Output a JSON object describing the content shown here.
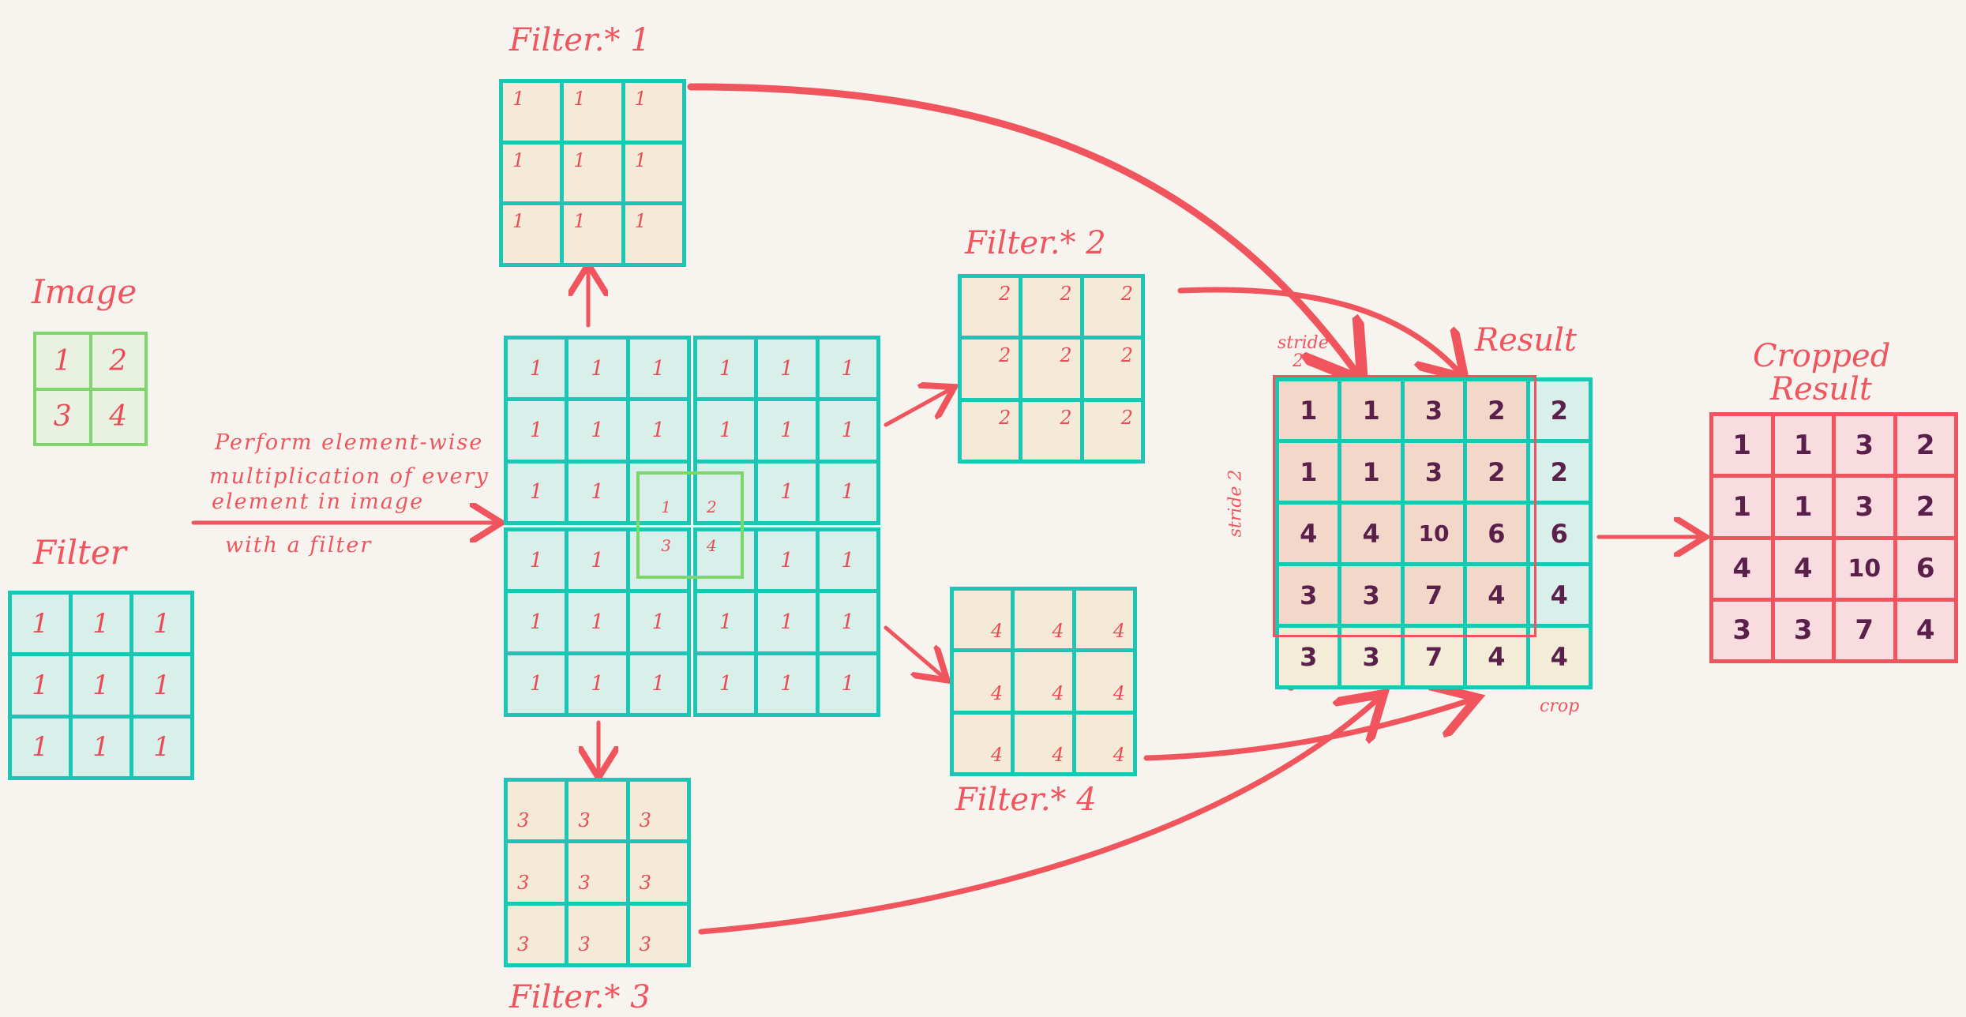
{
  "titles": {
    "image": "Image",
    "filter": "Filter",
    "filter1": "Filter.* 1",
    "filter2": "Filter.* 2",
    "filter3": "Filter.* 3",
    "filter4": "Filter.* 4",
    "result": "Result",
    "cropped_line1": "Cropped",
    "cropped_line2": "Result"
  },
  "notes": {
    "line1": "Perform element-wise",
    "line2": "multiplication of every",
    "line3": "element in image",
    "line4": "with a filter",
    "stride_top": "stride",
    "stride_top_num": "2",
    "stride_left": "stride 2",
    "crop_left": "crop",
    "crop_bottom": "crop"
  },
  "image": [
    [
      "1",
      "2"
    ],
    [
      "3",
      "4"
    ]
  ],
  "filter": [
    [
      "1",
      "1",
      "1"
    ],
    [
      "1",
      "1",
      "1"
    ],
    [
      "1",
      "1",
      "1"
    ]
  ],
  "filter1": [
    [
      "1",
      "1",
      "1"
    ],
    [
      "1",
      "1",
      "1"
    ],
    [
      "1",
      "1",
      "1"
    ]
  ],
  "filter2": [
    [
      "2",
      "2",
      "2"
    ],
    [
      "2",
      "2",
      "2"
    ],
    [
      "2",
      "2",
      "2"
    ]
  ],
  "filter3": [
    [
      "3",
      "3",
      "3"
    ],
    [
      "3",
      "3",
      "3"
    ],
    [
      "3",
      "3",
      "3"
    ]
  ],
  "filter4": [
    [
      "4",
      "4",
      "4"
    ],
    [
      "4",
      "4",
      "4"
    ],
    [
      "4",
      "4",
      "4"
    ]
  ],
  "combined_center": {
    "a": "1",
    "b": "2",
    "c": "3",
    "d": "4"
  },
  "result": [
    [
      "1",
      "1",
      "3",
      "2",
      "2"
    ],
    [
      "1",
      "1",
      "3",
      "2",
      "2"
    ],
    [
      "4",
      "4",
      "10",
      "6",
      "6"
    ],
    [
      "3",
      "3",
      "7",
      "4",
      "4"
    ],
    [
      "3",
      "3",
      "7",
      "4",
      "4"
    ]
  ],
  "cropped": [
    [
      "1",
      "1",
      "3",
      "2"
    ],
    [
      "1",
      "1",
      "3",
      "2"
    ],
    [
      "4",
      "4",
      "10",
      "6"
    ],
    [
      "3",
      "3",
      "7",
      "4"
    ]
  ],
  "colors": {
    "accent": "#f0555d",
    "teal": "#19c7b4",
    "green": "#7ed56b",
    "purple": "#5a1f4a"
  }
}
